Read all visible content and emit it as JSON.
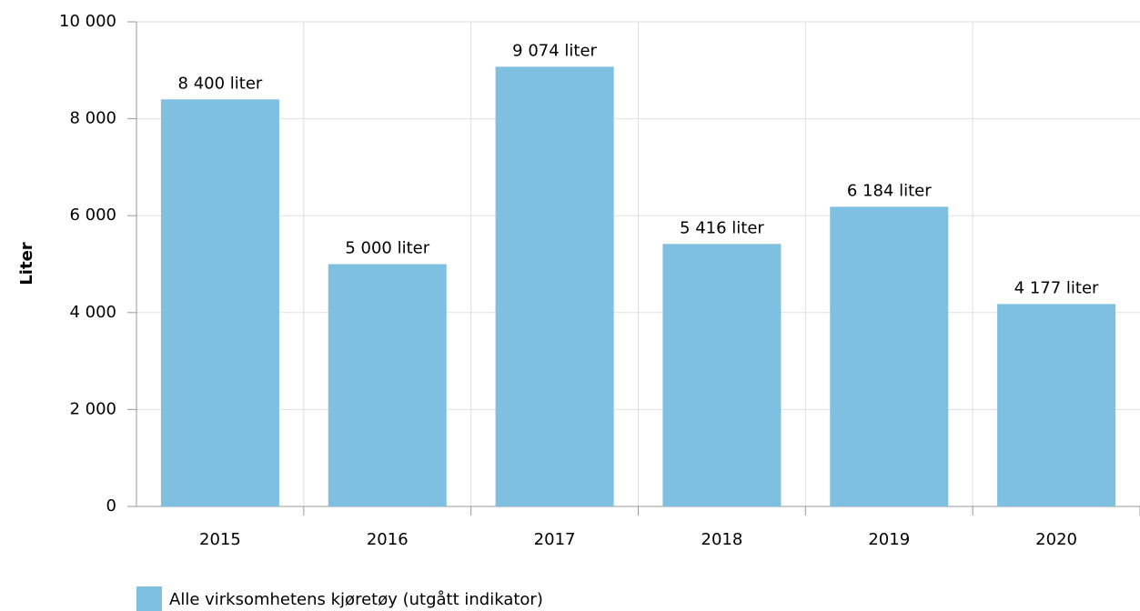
{
  "chart_data": {
    "type": "bar",
    "y_label": "Liter",
    "categories": [
      "2015",
      "2016",
      "2017",
      "2018",
      "2019",
      "2020"
    ],
    "series": [
      {
        "name": "Alle virksomhetens kjøretøy (utgått indikator)",
        "color": "#7fc0e1",
        "values": [
          8400,
          5000,
          9074,
          5416,
          6184,
          4177
        ],
        "value_labels": [
          "8 400 liter",
          "5 000 liter",
          "9 074 liter",
          "5 416 liter",
          "6 184 liter",
          "4 177 liter"
        ]
      }
    ],
    "ylim": [
      0,
      10000
    ],
    "yticks": [
      0,
      {
        "value": 2000,
        "label": "2 000"
      },
      {
        "value": 4000,
        "label": "4 000"
      },
      {
        "value": 6000,
        "label": "6 000"
      },
      {
        "value": 8000,
        "label": "8 000"
      },
      {
        "value": 10000,
        "label": "10 000"
      }
    ],
    "grid": true
  }
}
